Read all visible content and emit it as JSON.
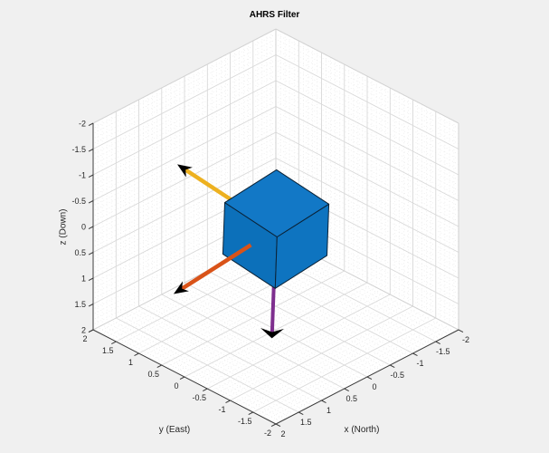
{
  "chart_data": {
    "type": "3d-pose",
    "title": "AHRS Filter",
    "axes": {
      "x": {
        "label": "x (North)",
        "range": [
          -2,
          2
        ],
        "ticks": [
          "2",
          "1.5",
          "1",
          "0.5",
          "0",
          "-0.5",
          "-1",
          "-1.5",
          "-2"
        ]
      },
      "y": {
        "label": "y (East)",
        "range": [
          -2,
          2
        ],
        "ticks": [
          "2",
          "1.5",
          "1",
          "0.5",
          "0",
          "-0.5",
          "-1",
          "-1.5",
          "-2"
        ]
      },
      "z": {
        "label": "z (Down)",
        "range": [
          -2,
          2
        ],
        "ticks": [
          "-2",
          "-1.5",
          "-1",
          "-0.5",
          "0",
          "0.5",
          "1",
          "1.5",
          "2"
        ]
      }
    },
    "grid": {
      "major_step": 0.5,
      "minor_step": 0.1,
      "visible": true
    },
    "pose": {
      "position": [
        0,
        0,
        0.05
      ],
      "orientation_deg": {
        "yaw": 0,
        "pitch": -6,
        "roll": -8
      }
    },
    "cube": {
      "half_size": 0.57,
      "face_colors": {
        "top": "#1278c6",
        "left": "#0c70ba",
        "front": "#0e74c0"
      },
      "edge_color": "#0b2236"
    },
    "arrows": [
      {
        "name": "body-x-arrow",
        "axis": "x",
        "color": "#D95319",
        "length": 2.1,
        "start_t": 0.55,
        "width": 4.5,
        "overlay": true,
        "flat_head": false
      },
      {
        "name": "body-y-arrow",
        "axis": "y",
        "color": "#EDB120",
        "length": 2.0,
        "start_t": 0.0,
        "width": 4.5,
        "overlay": false,
        "flat_head": false
      },
      {
        "name": "body-z-arrow",
        "axis": "z",
        "color": "#7E2F8E",
        "length": 2.3,
        "start_t": 0.0,
        "width": 4.0,
        "overlay": false,
        "flat_head": true
      }
    ],
    "colors": {
      "figure_background": "#f0f0f0",
      "wall": "#ffffff",
      "axis_line": "#3b3b3b",
      "major_grid": "#d9d9d9",
      "minor_grid": "#e9e9e9",
      "box_edge": "#d2d2d2",
      "tick_text": "#262626",
      "arrowhead": "#000000"
    }
  }
}
